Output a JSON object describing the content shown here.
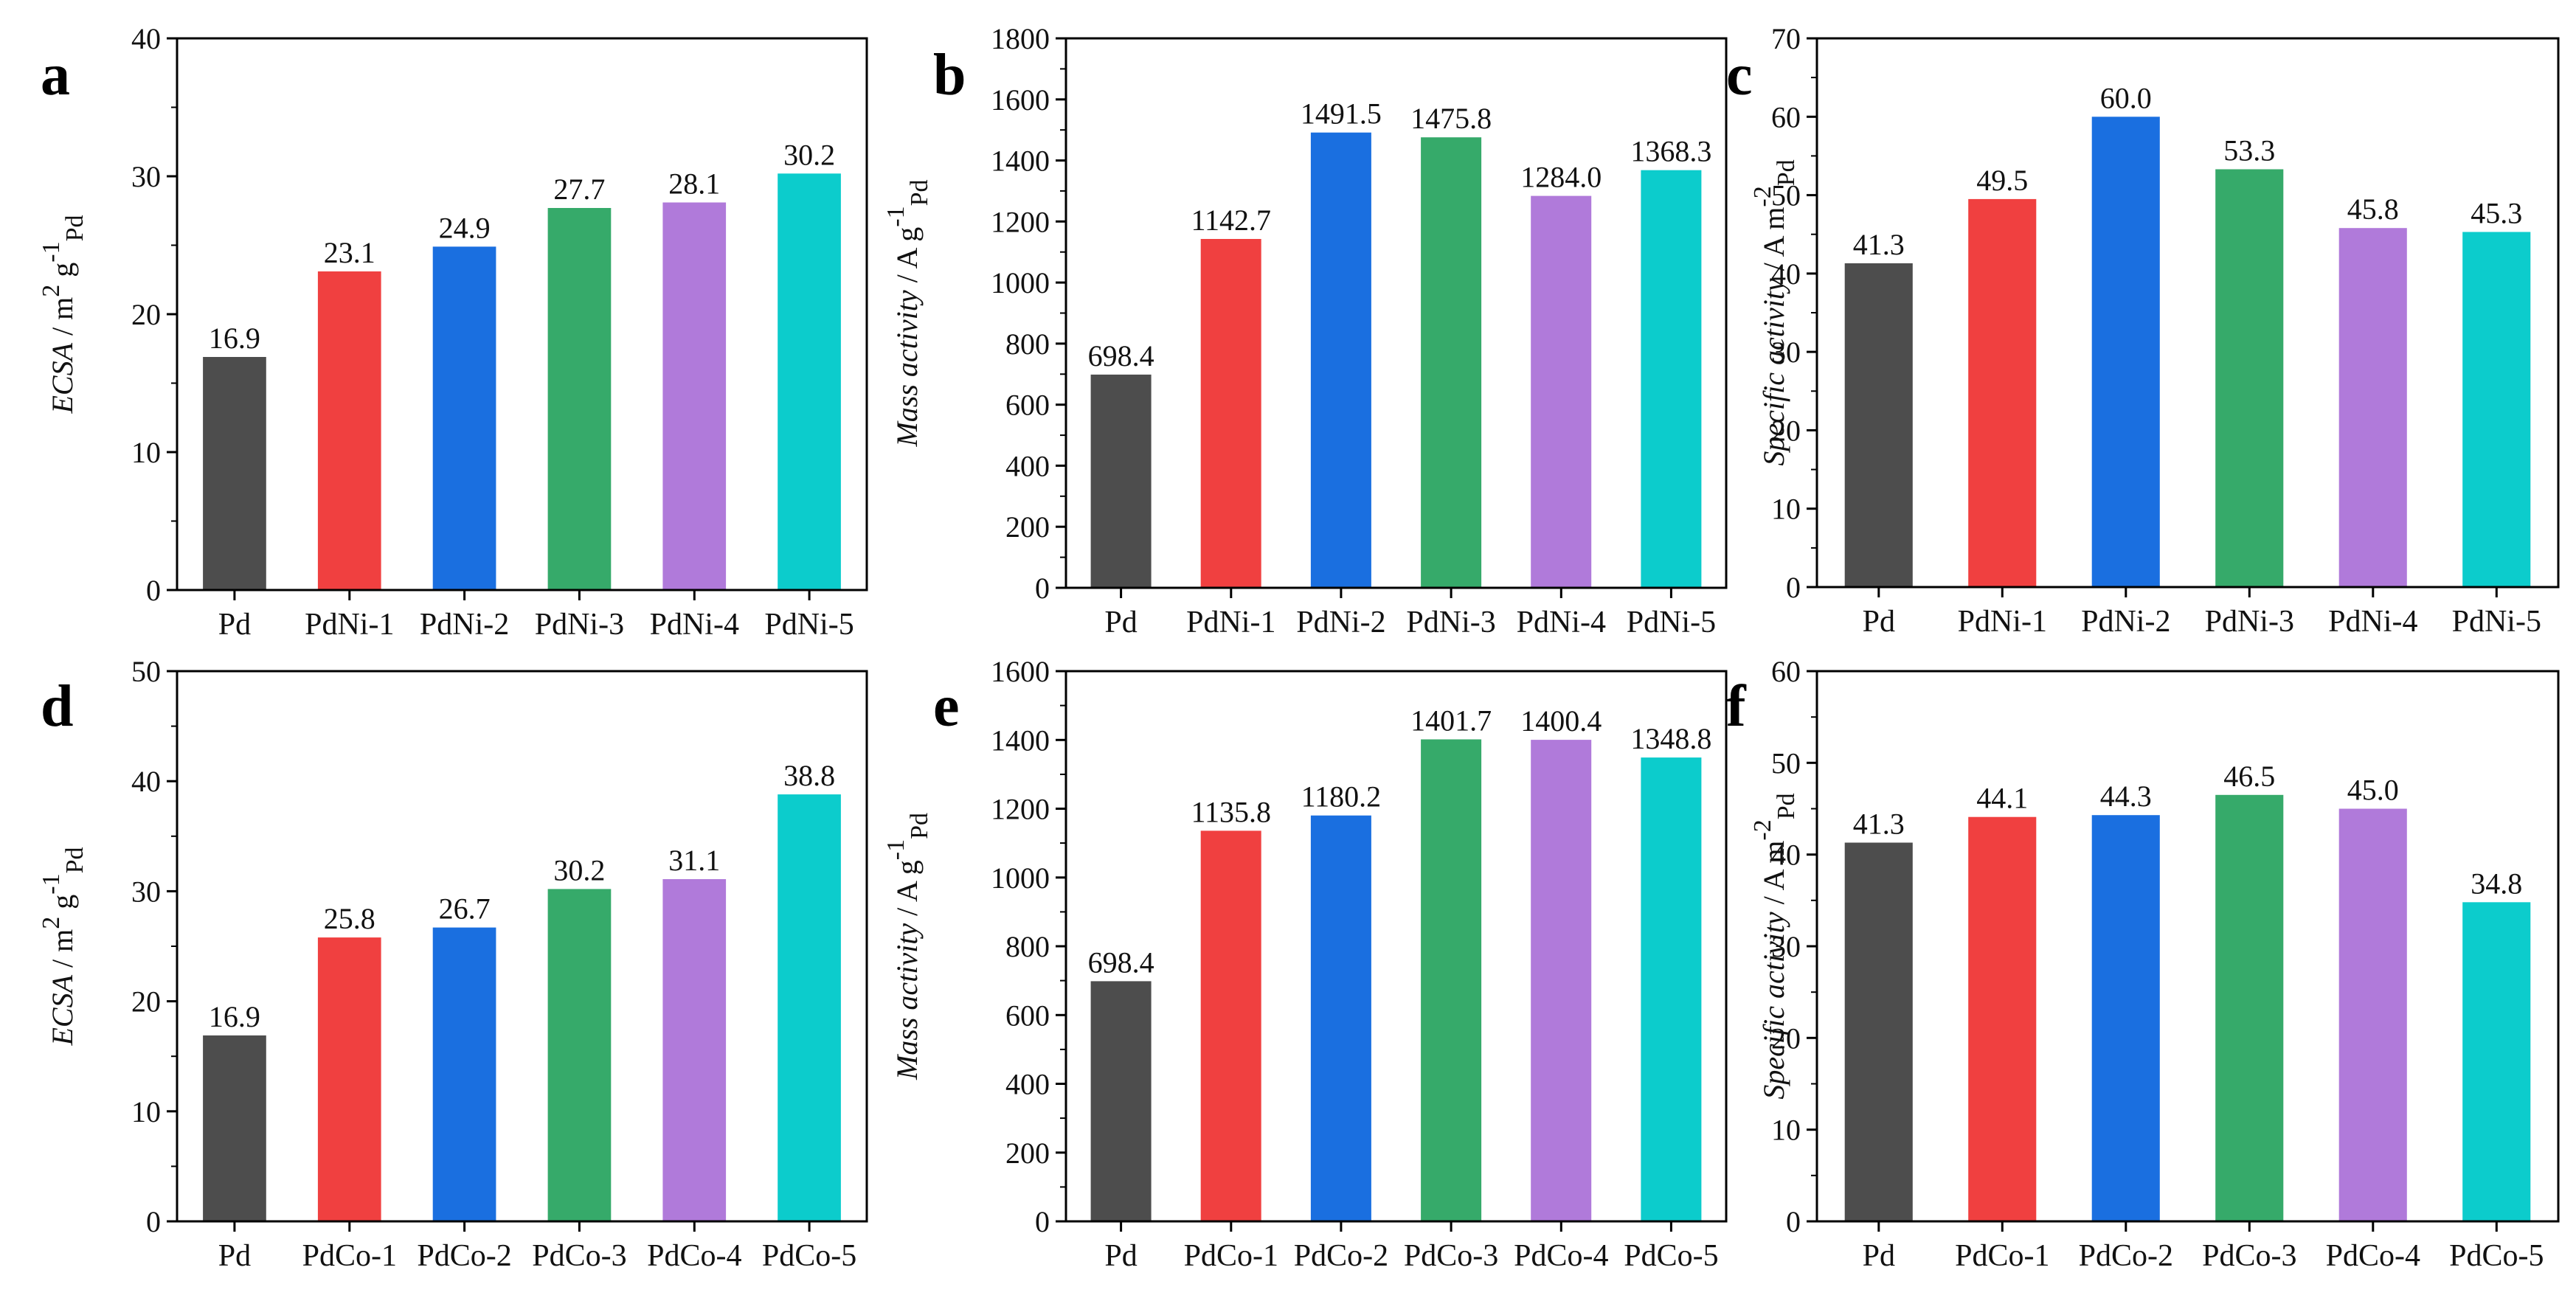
{
  "colors": [
    "#4d4d4d",
    "#f04040",
    "#1a6fe0",
    "#36aa6a",
    "#b07ada",
    "#0ccccc"
  ],
  "chart_data": [
    {
      "panel": "a",
      "type": "bar",
      "categories": [
        "Pd",
        "PdNi-1",
        "PdNi-2",
        "PdNi-3",
        "PdNi-4",
        "PdNi-5"
      ],
      "values": [
        16.9,
        23.1,
        24.9,
        27.7,
        28.1,
        30.2
      ],
      "labels": [
        "16.9",
        "23.1",
        "24.9",
        "27.7",
        "28.1",
        "30.2"
      ],
      "ylim": [
        0,
        40
      ],
      "yticks": [
        0,
        10,
        20,
        30,
        40
      ],
      "ylabel_name": "ECSA",
      "ylabel_unit": " / m",
      "ylabel_sup1": "2",
      "ylabel_mid": " g",
      "ylabel_sup2": "-1",
      "ylabel_sub": "Pd"
    },
    {
      "panel": "b",
      "type": "bar",
      "categories": [
        "Pd",
        "PdNi-1",
        "PdNi-2",
        "PdNi-3",
        "PdNi-4",
        "PdNi-5"
      ],
      "values": [
        698.4,
        1142.7,
        1491.5,
        1475.8,
        1284.0,
        1368.3
      ],
      "labels": [
        "698.4",
        "1142.7",
        "1491.5",
        "1475.8",
        "1284.0",
        "1368.3"
      ],
      "ylim": [
        0,
        1800
      ],
      "yticks": [
        0,
        200,
        400,
        600,
        800,
        1000,
        1200,
        1400,
        1600,
        1800
      ],
      "ylabel_name": "Mass activity",
      "ylabel_unit": " / A g",
      "ylabel_sup1": "-1",
      "ylabel_mid": "",
      "ylabel_sup2": "",
      "ylabel_sub": "Pd"
    },
    {
      "panel": "c",
      "type": "bar",
      "categories": [
        "Pd",
        "PdNi-1",
        "PdNi-2",
        "PdNi-3",
        "PdNi-4",
        "PdNi-5"
      ],
      "values": [
        41.3,
        49.5,
        60.0,
        53.3,
        45.8,
        45.3
      ],
      "labels": [
        "41.3",
        "49.5",
        "60.0",
        "53.3",
        "45.8",
        "45.3"
      ],
      "ylim": [
        0,
        70
      ],
      "yticks": [
        0,
        10,
        20,
        30,
        40,
        50,
        60,
        70
      ],
      "ylabel_name": "Specific activity",
      "ylabel_unit": " / A m",
      "ylabel_sup1": "-2",
      "ylabel_mid": "",
      "ylabel_sup2": "",
      "ylabel_sub": "Pd"
    },
    {
      "panel": "d",
      "type": "bar",
      "categories": [
        "Pd",
        "PdCo-1",
        "PdCo-2",
        "PdCo-3",
        "PdCo-4",
        "PdCo-5"
      ],
      "values": [
        16.9,
        25.8,
        26.7,
        30.2,
        31.1,
        38.8
      ],
      "labels": [
        "16.9",
        "25.8",
        "26.7",
        "30.2",
        "31.1",
        "38.8"
      ],
      "ylim": [
        0,
        50
      ],
      "yticks": [
        0,
        10,
        20,
        30,
        40,
        50
      ],
      "ylabel_name": "ECSA",
      "ylabel_unit": " / m",
      "ylabel_sup1": "2",
      "ylabel_mid": " g",
      "ylabel_sup2": "-1",
      "ylabel_sub": "Pd"
    },
    {
      "panel": "e",
      "type": "bar",
      "categories": [
        "Pd",
        "PdCo-1",
        "PdCo-2",
        "PdCo-3",
        "PdCo-4",
        "PdCo-5"
      ],
      "values": [
        698.4,
        1135.8,
        1180.2,
        1401.7,
        1400.4,
        1348.8
      ],
      "labels": [
        "698.4",
        "1135.8",
        "1180.2",
        "1401.7",
        "1400.4",
        "1348.8"
      ],
      "ylim": [
        0,
        1600
      ],
      "yticks": [
        0,
        200,
        400,
        600,
        800,
        1000,
        1200,
        1400,
        1600
      ],
      "ylabel_name": "Mass activity",
      "ylabel_unit": " / A g",
      "ylabel_sup1": "-1",
      "ylabel_mid": "",
      "ylabel_sup2": "",
      "ylabel_sub": "Pd"
    },
    {
      "panel": "f",
      "type": "bar",
      "categories": [
        "Pd",
        "PdCo-1",
        "PdCo-2",
        "PdCo-3",
        "PdCo-4",
        "PdCo-5"
      ],
      "values": [
        41.3,
        44.1,
        44.3,
        46.5,
        45.0,
        34.8
      ],
      "labels": [
        "41.3",
        "44.1",
        "44.3",
        "46.5",
        "45.0",
        "34.8"
      ],
      "ylim": [
        0,
        60
      ],
      "yticks": [
        0,
        10,
        20,
        30,
        40,
        50,
        60
      ],
      "ylabel_name": "Specific activity",
      "ylabel_unit": " / A m",
      "ylabel_sup1": "-2",
      "ylabel_mid": "",
      "ylabel_sup2": "",
      "ylabel_sub": "Pd"
    }
  ]
}
